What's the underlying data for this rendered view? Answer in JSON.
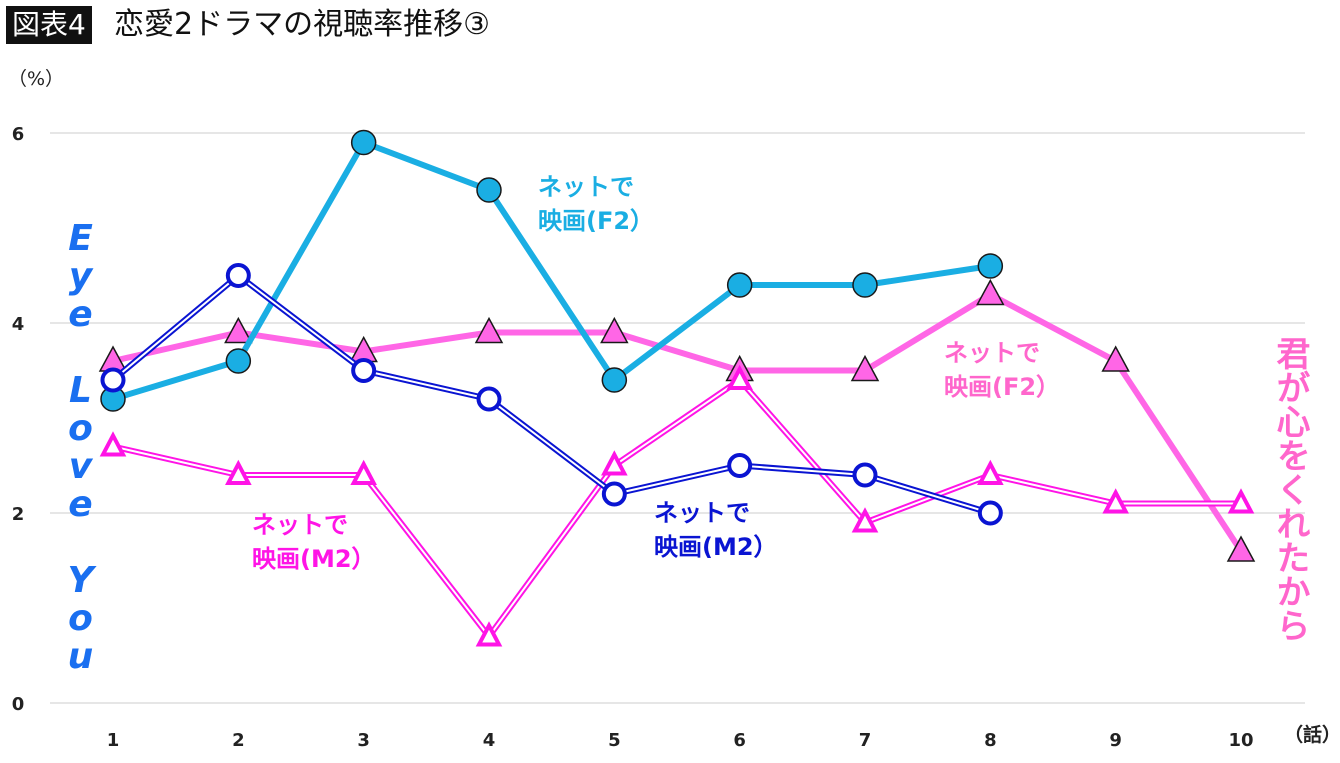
{
  "header": {
    "badge": "図表4",
    "title": "恋愛2ドラマの視聴率推移③"
  },
  "chart_data": {
    "type": "line",
    "title": "恋愛2ドラマの視聴率推移③",
    "ylabel": "（%）",
    "xlabel": "（話）",
    "ylim": [
      0,
      6
    ],
    "yticks": [
      0,
      2,
      4,
      6
    ],
    "grid": true,
    "categories": [
      "1",
      "2",
      "3",
      "4",
      "5",
      "6",
      "7",
      "8",
      "9",
      "10"
    ],
    "series": [
      {
        "name": "Eye Love You ネットで映画(F2)",
        "color": "#1aaee3",
        "marker": "filled-circle",
        "line": "solid",
        "values": [
          3.2,
          3.6,
          5.9,
          5.4,
          3.4,
          4.4,
          4.4,
          4.6,
          null,
          null
        ]
      },
      {
        "name": "Eye Love You ネットで映画(M2)",
        "color": "#0a14d2",
        "marker": "hollow-circle",
        "line": "double",
        "values": [
          3.4,
          4.5,
          3.5,
          3.2,
          2.2,
          2.5,
          2.4,
          2.0,
          null,
          null
        ]
      },
      {
        "name": "君が心をくれたから ネットで映画(F2)",
        "color": "#ff66e6",
        "marker": "filled-triangle",
        "line": "solid",
        "values": [
          3.6,
          3.9,
          3.7,
          3.9,
          3.9,
          3.5,
          3.5,
          4.3,
          3.6,
          1.6
        ]
      },
      {
        "name": "君が心をくれたから ネットで映画(M2)",
        "color": "#ff14e6",
        "marker": "hollow-triangle",
        "line": "double",
        "values": [
          2.7,
          2.4,
          2.4,
          0.7,
          2.5,
          3.4,
          1.9,
          2.4,
          2.1,
          2.1
        ]
      }
    ],
    "annotations": {
      "drama_a": {
        "text": "Eye Love You",
        "color": "#1a6ff0"
      },
      "drama_b": {
        "text": "君が心をくれたから",
        "color": "#ff66cc"
      },
      "eye_f2": {
        "text": "ネットで\n映画(F2）",
        "color": "#1aaee3"
      },
      "eye_m2": {
        "text": "ネットで\n映画(M2）",
        "color": "#0a14d2"
      },
      "kimi_f2": {
        "text": "ネットで\n映画(F2）",
        "color": "#ff66cc"
      },
      "kimi_m2": {
        "text": "ネットで\n映画(M2）",
        "color": "#ff14e6"
      }
    }
  }
}
